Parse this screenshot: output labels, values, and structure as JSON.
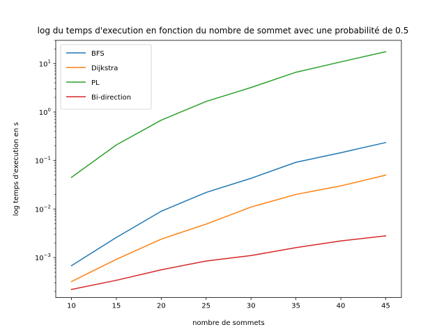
{
  "chart_data": {
    "type": "line",
    "title": "log du temps d'execution en fonction du nombre de sommet avec une probabilité de 0.5",
    "xlabel": "nombre de sommets",
    "ylabel": "log temps d'execution en s",
    "yscale": "log",
    "x": [
      10,
      15,
      20,
      25,
      30,
      35,
      40,
      45
    ],
    "xticks": [
      "10",
      "15",
      "20",
      "25",
      "30",
      "35",
      "40",
      "45"
    ],
    "yticks": [
      {
        "value": 0.001,
        "base": "10",
        "exp": "−3"
      },
      {
        "value": 0.01,
        "base": "10",
        "exp": "−2"
      },
      {
        "value": 0.1,
        "base": "10",
        "exp": "−1"
      },
      {
        "value": 1,
        "base": "10",
        "exp": "0"
      },
      {
        "value": 10,
        "base": "10",
        "exp": "1"
      }
    ],
    "xlim": [
      8.25,
      46.75
    ],
    "ylim": [
      0.00015,
      30
    ],
    "legend_position": "top-left",
    "grid": false,
    "series": [
      {
        "name": "BFS",
        "color": "#1f77b4",
        "values": [
          0.00068,
          0.0026,
          0.009,
          0.022,
          0.043,
          0.092,
          0.145,
          0.235
        ]
      },
      {
        "name": "Dijkstra",
        "color": "#ff7f0e",
        "values": [
          0.00032,
          0.00092,
          0.0024,
          0.0049,
          0.011,
          0.02,
          0.03,
          0.05
        ]
      },
      {
        "name": "PL",
        "color": "#2ca02c",
        "values": [
          0.045,
          0.21,
          0.68,
          1.65,
          3.2,
          6.6,
          10.8,
          17.5
        ]
      },
      {
        "name": "Bi-direction",
        "color": "#d62728",
        "values": [
          0.00022,
          0.00034,
          0.00056,
          0.00085,
          0.0011,
          0.0016,
          0.0022,
          0.0028
        ]
      }
    ]
  }
}
